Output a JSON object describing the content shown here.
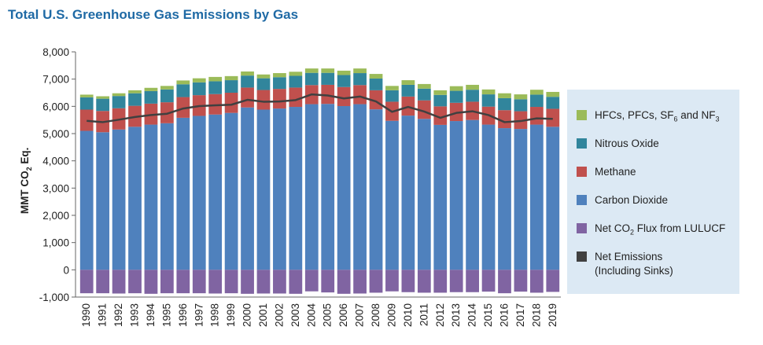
{
  "chart_data": {
    "type": "bar",
    "stacked": true,
    "title": "Total U.S. Greenhouse Gas Emissions by Gas",
    "ylabel": "MMT CO2 Eq.",
    "ylim": [
      -1000,
      8000
    ],
    "yticks": [
      "8,000",
      "7,000",
      "6,000",
      "5,000",
      "4,000",
      "3,000",
      "2,000",
      "1,000",
      "0",
      "-1,000"
    ],
    "ytick_values": [
      8000,
      7000,
      6000,
      5000,
      4000,
      3000,
      2000,
      1000,
      0,
      -1000
    ],
    "categories": [
      "1990",
      "1991",
      "1992",
      "1993",
      "1994",
      "1995",
      "1996",
      "1997",
      "1998",
      "1999",
      "2000",
      "2001",
      "2002",
      "2003",
      "2004",
      "2005",
      "2006",
      "2007",
      "2008",
      "2009",
      "2010",
      "2011",
      "2012",
      "2013",
      "2014",
      "2015",
      "2016",
      "2017",
      "2018",
      "2019"
    ],
    "series": [
      {
        "name": "Carbon Dioxide",
        "color": "#4f81bd",
        "values": [
          5100,
          5050,
          5150,
          5250,
          5330,
          5380,
          5580,
          5650,
          5700,
          5760,
          5960,
          5880,
          5920,
          5980,
          6080,
          6090,
          6010,
          6080,
          5890,
          5470,
          5660,
          5540,
          5320,
          5460,
          5500,
          5330,
          5200,
          5170,
          5330,
          5250
        ]
      },
      {
        "name": "Methane",
        "color": "#c0504d",
        "values": [
          780,
          780,
          780,
          770,
          770,
          770,
          760,
          760,
          750,
          740,
          730,
          720,
          720,
          710,
          700,
          700,
          700,
          700,
          700,
          700,
          700,
          680,
          680,
          670,
          670,
          660,
          660,
          650,
          650,
          660
        ]
      },
      {
        "name": "Nitrous Oxide",
        "color": "#31859c",
        "values": [
          450,
          450,
          450,
          460,
          460,
          470,
          470,
          470,
          470,
          460,
          440,
          430,
          430,
          430,
          450,
          440,
          440,
          440,
          430,
          420,
          430,
          430,
          420,
          440,
          440,
          450,
          440,
          440,
          450,
          440
        ]
      },
      {
        "name": "HFCs, PFCs, SF6 and NF3",
        "color": "#9bbb59",
        "values": [
          100,
          90,
          100,
          110,
          120,
          130,
          140,
          150,
          160,
          150,
          150,
          140,
          150,
          150,
          160,
          160,
          160,
          170,
          170,
          160,
          170,
          170,
          170,
          170,
          180,
          180,
          180,
          180,
          180,
          180
        ]
      },
      {
        "name": "Net CO2 Flux from LULUCF",
        "color": "#8064a2",
        "values": [
          -860,
          -860,
          -870,
          -860,
          -880,
          -860,
          -860,
          -860,
          -870,
          -860,
          -880,
          -870,
          -870,
          -880,
          -790,
          -830,
          -880,
          -870,
          -840,
          -790,
          -820,
          -840,
          -840,
          -820,
          -820,
          -800,
          -860,
          -800,
          -840,
          -810
        ]
      }
    ],
    "net_emissions": {
      "name": "Net Emissions (Including Sinks)",
      "color": "#404040",
      "values": [
        5470,
        5420,
        5510,
        5610,
        5680,
        5730,
        5920,
        6010,
        6040,
        6060,
        6240,
        6170,
        6180,
        6230,
        6440,
        6400,
        6290,
        6360,
        6180,
        5800,
        5980,
        5810,
        5580,
        5760,
        5820,
        5680,
        5420,
        5460,
        5560,
        5540
      ]
    },
    "legend": [
      {
        "label_main": "HFCs, PFCs, SF",
        "sub": "6",
        "label_tail": " and NF",
        "sub2": "3",
        "color": "#9bbb59"
      },
      {
        "label_main": "Nitrous Oxide",
        "color": "#31859c"
      },
      {
        "label_main": "Methane",
        "color": "#c0504d"
      },
      {
        "label_main": "Carbon Dioxide",
        "color": "#4f81bd"
      },
      {
        "label_main": "Net CO",
        "sub": "2",
        "label_tail": " Flux from LULUCF",
        "color": "#8064a2"
      },
      {
        "label_main": "Net Emissions",
        "label_line2": "(Including Sinks)",
        "color": "#404040"
      }
    ]
  }
}
